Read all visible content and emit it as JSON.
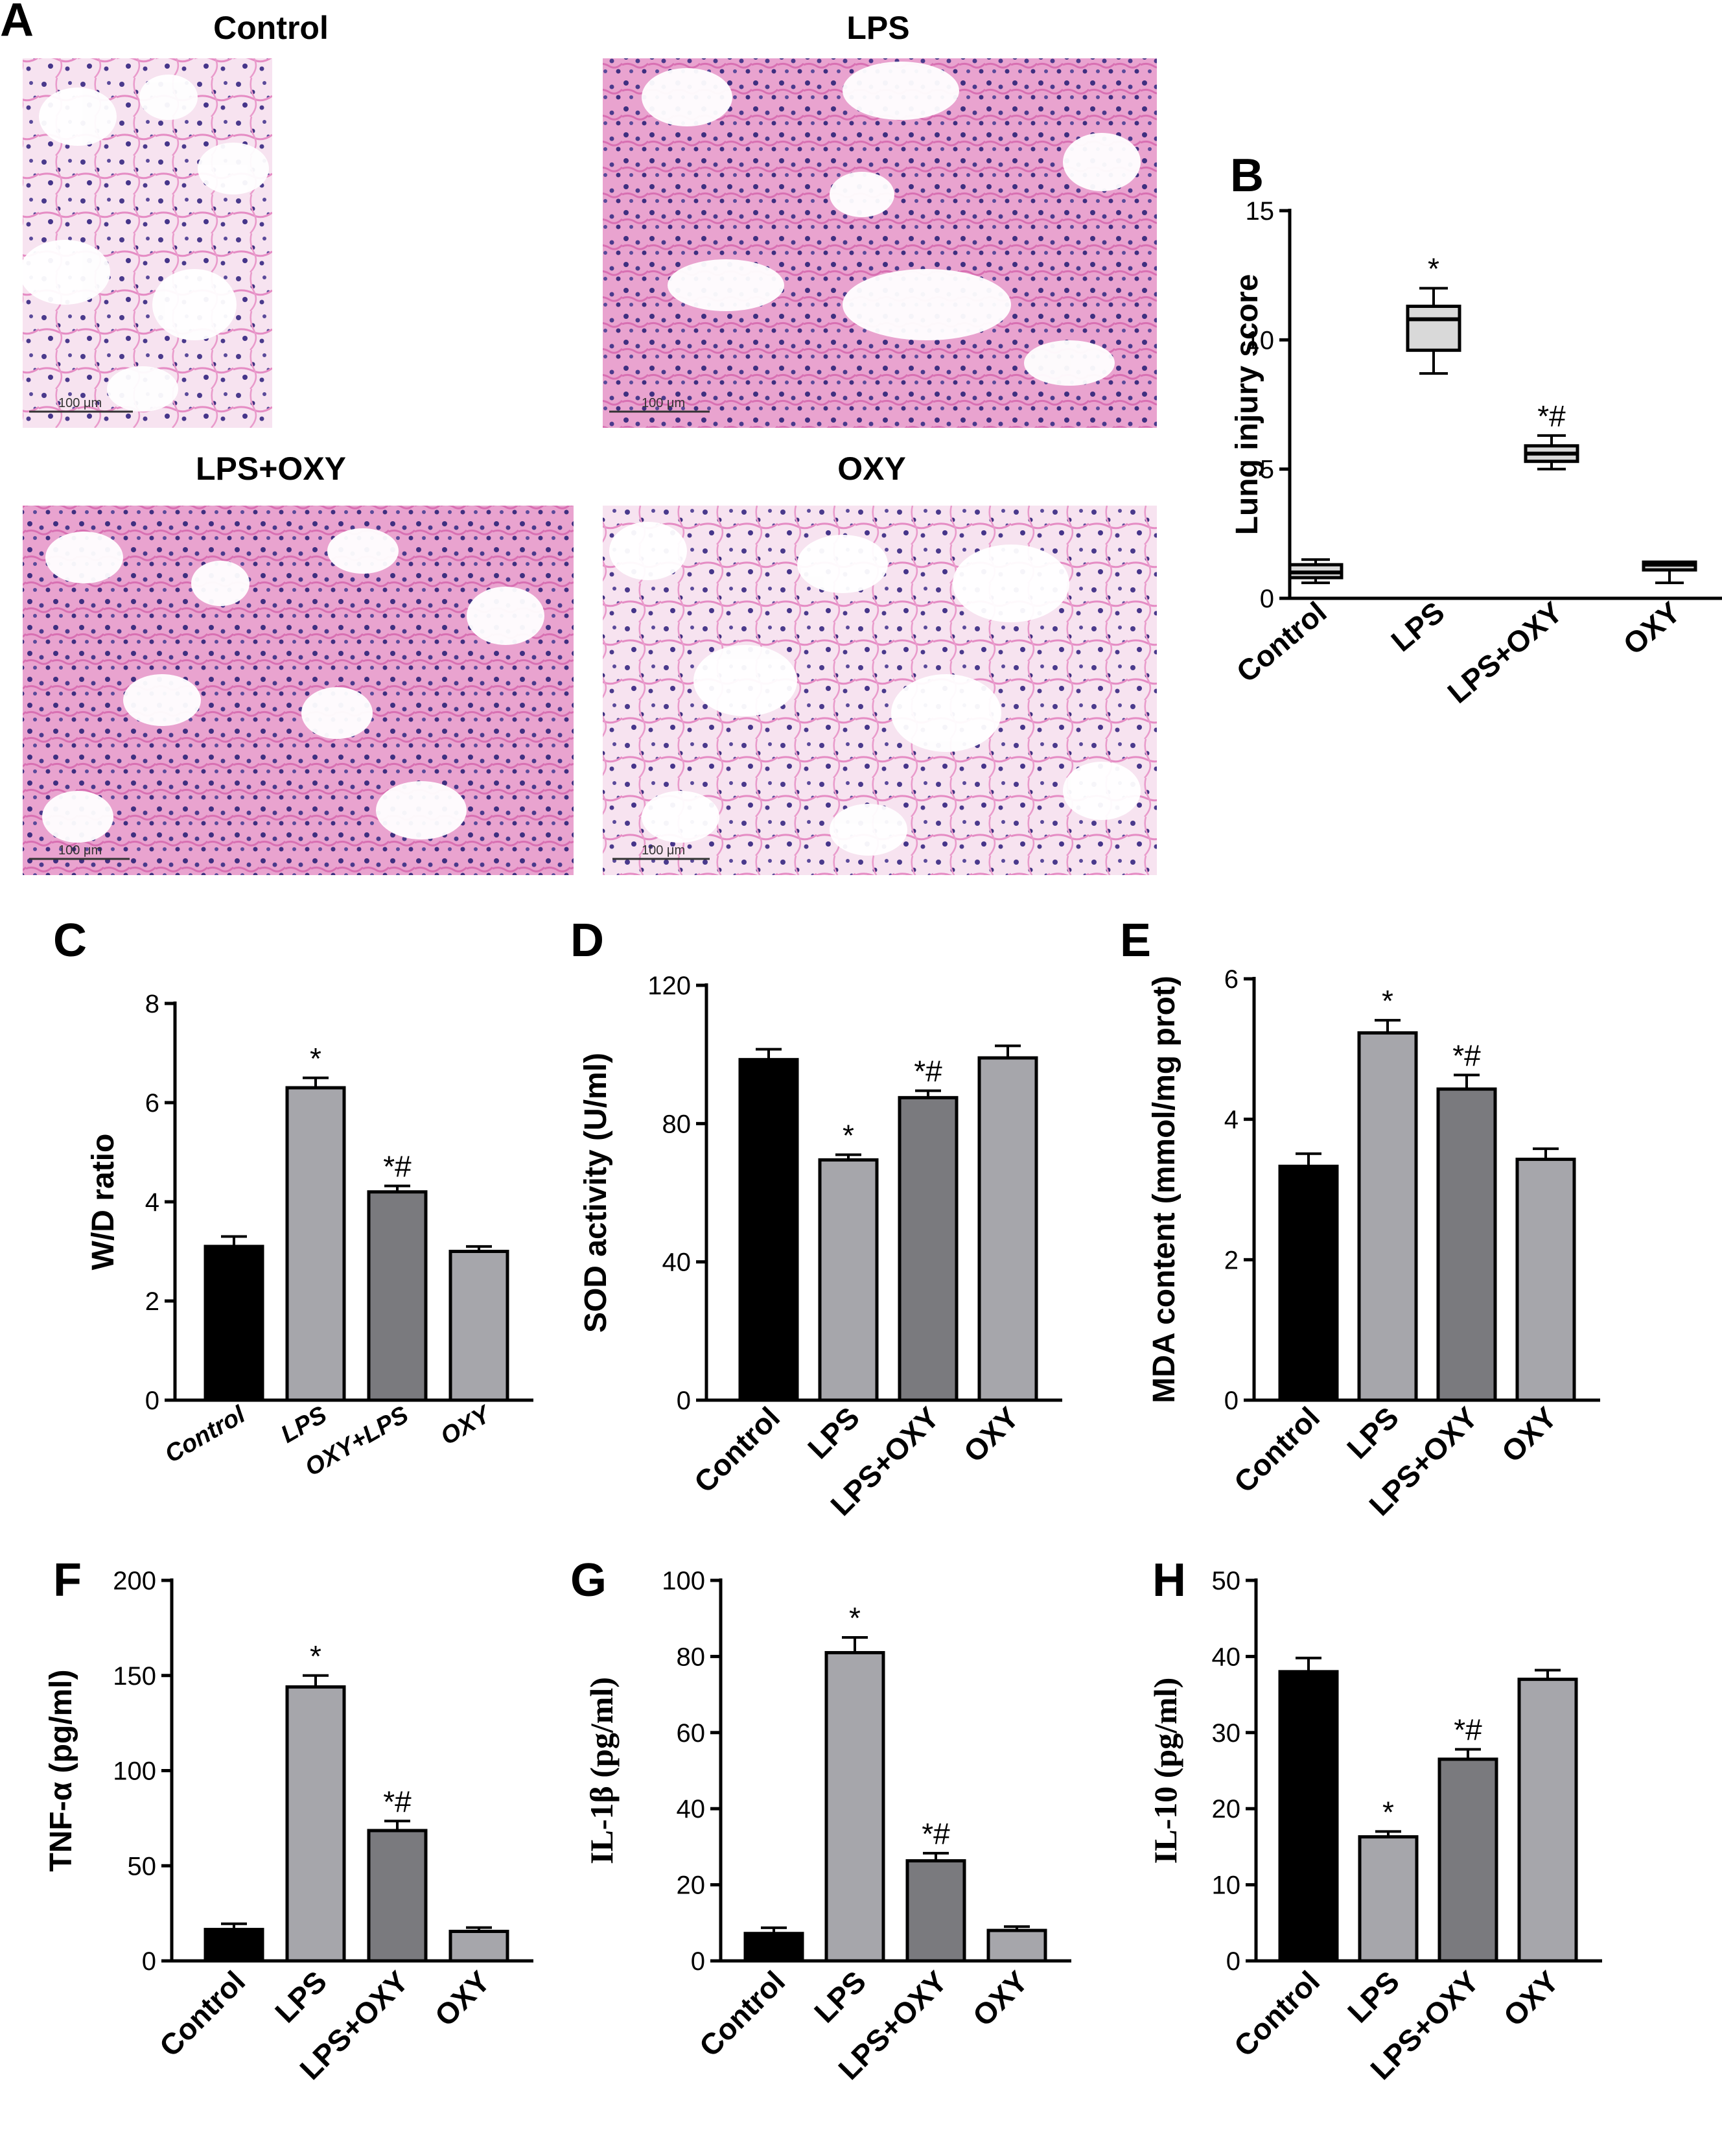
{
  "figure": {
    "panel_a": {
      "letter": "A",
      "images": [
        {
          "title": "Control",
          "scale_label": "100 μm"
        },
        {
          "title": "LPS",
          "scale_label": "100 μm"
        },
        {
          "title": "LPS+OXY",
          "scale_label": "100 μm"
        },
        {
          "title": "OXY",
          "scale_label": "100 μm"
        }
      ]
    }
  },
  "colors": {
    "black": "#000000",
    "light_gray": "#a6a6ab",
    "dark_gray": "#7a7a7e",
    "box_fill": "#d9d9d9"
  },
  "chart_data": [
    {
      "id": "B",
      "letter": "B",
      "type": "box",
      "ylabel": "Lung injury score",
      "categories": [
        "Control",
        "LPS",
        "LPS+OXY",
        "OXY"
      ],
      "ylim": [
        0,
        15
      ],
      "yticks": [
        0,
        5,
        10,
        15
      ],
      "boxes": [
        {
          "min": 0.6,
          "q1": 0.8,
          "median": 1.0,
          "q3": 1.3,
          "max": 1.5
        },
        {
          "min": 8.7,
          "q1": 9.6,
          "median": 10.8,
          "q3": 11.3,
          "max": 12.0
        },
        {
          "min": 5.0,
          "q1": 5.3,
          "median": 5.6,
          "q3": 5.9,
          "max": 6.3
        },
        {
          "min": 0.6,
          "q1": 1.1,
          "median": 1.3,
          "q3": 1.4,
          "max": 1.4
        }
      ],
      "sig": [
        "",
        "*",
        "*#",
        ""
      ]
    },
    {
      "id": "C",
      "letter": "C",
      "type": "bar",
      "ylabel": "W/D ratio",
      "categories": [
        "Control",
        "LPS",
        "OXY+LPS",
        "OXY"
      ],
      "ylim": [
        0,
        8
      ],
      "yticks": [
        0,
        2,
        4,
        6,
        8
      ],
      "values": [
        3.1,
        6.3,
        4.2,
        3.0
      ],
      "errors": [
        0.2,
        0.2,
        0.12,
        0.1
      ],
      "colors": [
        "#000000",
        "#a6a6ab",
        "#7a7a7e",
        "#a6a6ab"
      ],
      "sig": [
        "",
        "*",
        "*#",
        ""
      ]
    },
    {
      "id": "D",
      "letter": "D",
      "type": "bar",
      "ylabel": "SOD activity (U/ml)",
      "categories": [
        "Control",
        "LPS",
        "LPS+OXY",
        "OXY"
      ],
      "ylim": [
        0,
        120
      ],
      "yticks": [
        0,
        40,
        80,
        120
      ],
      "values": [
        98.5,
        69.5,
        87.5,
        99.0
      ],
      "errors": [
        3.0,
        1.5,
        2.0,
        3.5
      ],
      "colors": [
        "#000000",
        "#a6a6ab",
        "#7a7a7e",
        "#a6a6ab"
      ],
      "sig": [
        "",
        "*",
        "*#",
        ""
      ]
    },
    {
      "id": "E",
      "letter": "E",
      "type": "bar",
      "ylabel": "MDA content (mmol/mg prot)",
      "categories": [
        "Control",
        "LPS",
        "LPS+OXY",
        "OXY"
      ],
      "ylim": [
        0,
        6
      ],
      "yticks": [
        0,
        2,
        4,
        6
      ],
      "values": [
        3.33,
        5.23,
        4.43,
        3.43
      ],
      "errors": [
        0.18,
        0.18,
        0.2,
        0.15
      ],
      "colors": [
        "#000000",
        "#a6a6ab",
        "#7a7a7e",
        "#a6a6ab"
      ],
      "sig": [
        "",
        "*",
        "*#",
        ""
      ]
    },
    {
      "id": "F",
      "letter": "F",
      "type": "bar",
      "ylabel": "TNF-α (pg/ml)",
      "categories": [
        "Control",
        "LPS",
        "LPS+OXY",
        "OXY"
      ],
      "ylim": [
        0,
        200
      ],
      "yticks": [
        0,
        50,
        100,
        150,
        200
      ],
      "values": [
        16.5,
        144.0,
        68.5,
        15.5
      ],
      "errors": [
        3.0,
        6.0,
        5.0,
        2.0
      ],
      "colors": [
        "#000000",
        "#a6a6ab",
        "#7a7a7e",
        "#a6a6ab"
      ],
      "sig": [
        "",
        "*",
        "*#",
        ""
      ]
    },
    {
      "id": "G",
      "letter": "G",
      "type": "bar",
      "ylabel": "IL-1β (pg/ml)",
      "categories": [
        "Control",
        "LPS",
        "LPS+OXY",
        "OXY"
      ],
      "ylim": [
        0,
        100
      ],
      "yticks": [
        0,
        20,
        40,
        60,
        80,
        100
      ],
      "values": [
        7.2,
        81.0,
        26.3,
        8.0
      ],
      "errors": [
        1.5,
        4.0,
        2.0,
        1.0
      ],
      "colors": [
        "#000000",
        "#a6a6ab",
        "#7a7a7e",
        "#a6a6ab"
      ],
      "sig": [
        "",
        "*",
        "*#",
        ""
      ]
    },
    {
      "id": "H",
      "letter": "H",
      "type": "bar",
      "ylabel": "IL-10 (pg/ml)",
      "categories": [
        "Control",
        "LPS",
        "LPS+OXY",
        "OXY"
      ],
      "ylim": [
        0,
        50
      ],
      "yticks": [
        0,
        10,
        20,
        30,
        40,
        50
      ],
      "values": [
        38.0,
        16.3,
        26.5,
        37.0
      ],
      "errors": [
        1.8,
        0.7,
        1.3,
        1.2
      ],
      "colors": [
        "#000000",
        "#a6a6ab",
        "#7a7a7e",
        "#a6a6ab"
      ],
      "sig": [
        "",
        "*",
        "*#",
        ""
      ]
    }
  ]
}
